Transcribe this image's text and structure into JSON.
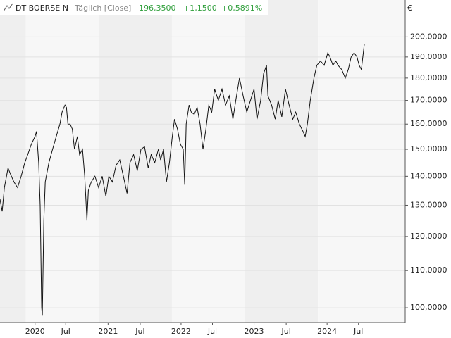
{
  "chart_data": {
    "type": "line",
    "interval": "Täglich [Close]",
    "last": "196,3500",
    "change": "+1,1500",
    "change_pct": "+0,5891%",
    "y_unit": "€",
    "log_scale": true,
    "grid": true,
    "xlim": [
      2019.52,
      2025.07
    ],
    "ylim": [
      96.3,
      219.8
    ],
    "xticks": [
      {
        "value": 2020.0,
        "label": "2020"
      },
      {
        "value": 2020.42,
        "label": "Jul"
      },
      {
        "value": 2021.0,
        "label": "2021"
      },
      {
        "value": 2021.44,
        "label": "Jul"
      },
      {
        "value": 2022.0,
        "label": "2022"
      },
      {
        "value": 2022.43,
        "label": "Jul"
      },
      {
        "value": 2023.0,
        "label": "2023"
      },
      {
        "value": 2023.44,
        "label": "Jul"
      },
      {
        "value": 2024.0,
        "label": "2024"
      },
      {
        "value": 2024.43,
        "label": "Jul"
      }
    ],
    "yticks": [
      {
        "value": 100,
        "label": "100,0000"
      },
      {
        "value": 110,
        "label": "110,0000"
      },
      {
        "value": 120,
        "label": "120,0000"
      },
      {
        "value": 130,
        "label": "130,0000"
      },
      {
        "value": 140,
        "label": "140,0000"
      },
      {
        "value": 150,
        "label": "150,0000"
      },
      {
        "value": 160,
        "label": "160,0000"
      },
      {
        "value": 170,
        "label": "170,0000"
      },
      {
        "value": 180,
        "label": "180,0000"
      },
      {
        "value": 190,
        "label": "190,0000"
      },
      {
        "value": 200,
        "label": "200,0000"
      }
    ],
    "series": [
      {
        "name": "DT BOERSE N",
        "color": "#111111",
        "x": [
          2019.52,
          2019.55,
          2019.58,
          2019.63,
          2019.66,
          2019.71,
          2019.76,
          2019.81,
          2019.86,
          2019.9,
          2019.95,
          2020.0,
          2020.02,
          2020.05,
          2020.07,
          2020.09,
          2020.1,
          2020.12,
          2020.14,
          2020.19,
          2020.24,
          2020.29,
          2020.34,
          2020.37,
          2020.41,
          2020.43,
          2020.45,
          2020.48,
          2020.51,
          2020.54,
          2020.58,
          2020.61,
          2020.65,
          2020.68,
          2020.7,
          2020.71,
          2020.73,
          2020.77,
          2020.82,
          2020.87,
          2020.92,
          2020.97,
          2021.01,
          2021.06,
          2021.11,
          2021.16,
          2021.21,
          2021.26,
          2021.3,
          2021.35,
          2021.4,
          2021.45,
          2021.5,
          2021.55,
          2021.59,
          2021.64,
          2021.69,
          2021.72,
          2021.76,
          2021.8,
          2021.84,
          2021.88,
          2021.91,
          2021.95,
          2021.99,
          2022.03,
          2022.05,
          2022.07,
          2022.11,
          2022.14,
          2022.18,
          2022.22,
          2022.26,
          2022.3,
          2022.34,
          2022.38,
          2022.42,
          2022.46,
          2022.51,
          2022.56,
          2022.61,
          2022.66,
          2022.71,
          2022.75,
          2022.8,
          2022.85,
          2022.9,
          2022.95,
          2023.0,
          2023.04,
          2023.09,
          2023.13,
          2023.17,
          2023.19,
          2023.24,
          2023.29,
          2023.33,
          2023.38,
          2023.43,
          2023.48,
          2023.53,
          2023.57,
          2023.62,
          2023.67,
          2023.7,
          2023.73,
          2023.77,
          2023.82,
          2023.86,
          2023.91,
          2023.96,
          2024.01,
          2024.04,
          2024.08,
          2024.12,
          2024.15,
          2024.2,
          2024.25,
          2024.29,
          2024.33,
          2024.37,
          2024.41,
          2024.44,
          2024.47,
          2024.51
        ],
        "values": [
          132,
          128,
          136,
          143,
          141,
          138,
          136,
          140,
          145,
          148,
          152,
          155,
          157,
          145,
          130,
          100,
          98,
          125,
          138,
          145,
          150,
          155,
          160,
          165,
          168,
          167,
          160,
          160,
          158,
          150,
          155,
          148,
          150,
          140,
          130,
          125,
          135,
          138,
          140,
          136,
          140,
          133,
          140,
          138,
          144,
          146,
          140,
          134,
          145,
          148,
          142,
          150,
          151,
          143,
          148,
          145,
          150,
          146,
          150,
          138,
          145,
          155,
          162,
          158,
          152,
          150,
          137,
          160,
          168,
          165,
          164,
          167,
          160,
          150,
          158,
          168,
          165,
          175,
          170,
          175,
          168,
          172,
          162,
          170,
          180,
          172,
          165,
          170,
          175,
          162,
          170,
          182,
          186,
          172,
          168,
          162,
          170,
          163,
          175,
          168,
          162,
          165,
          160,
          157,
          155,
          160,
          170,
          180,
          186,
          188,
          186,
          192,
          190,
          186,
          188,
          186,
          184,
          180,
          184,
          190,
          192,
          190,
          186,
          184,
          196.35
        ]
      }
    ]
  }
}
